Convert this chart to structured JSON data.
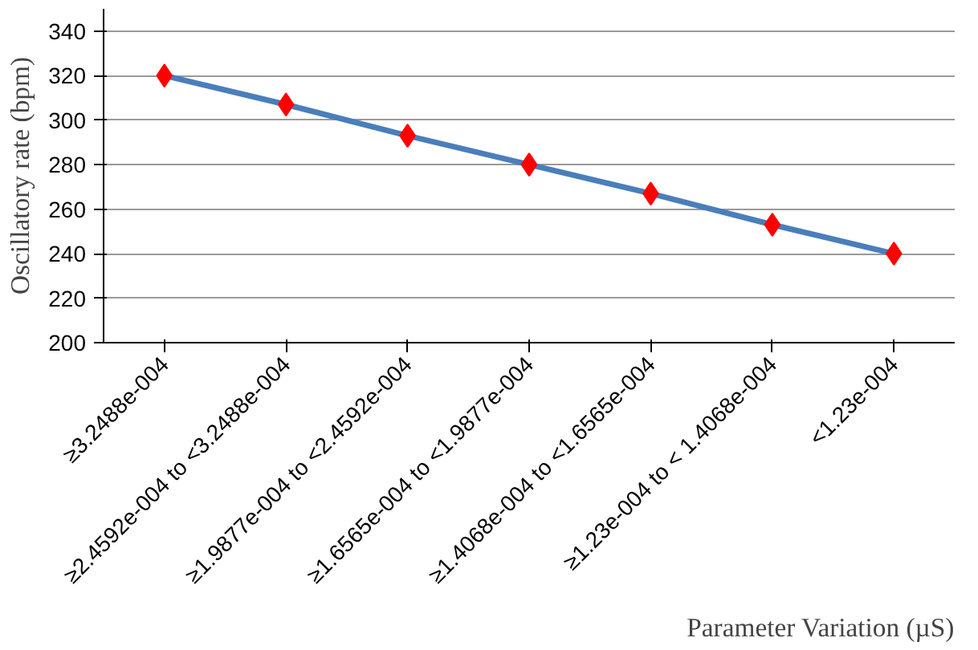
{
  "chart_data": {
    "type": "line",
    "categories": [
      "≥3.2488e-004",
      "≥2.4592e-004 to <3.2488e-004",
      "≥1.9877e-004 to <2.4592e-004",
      "≥1.6565e-004 to <1.9877e-004",
      "≥1.4068e-004 to <1.6565e-004",
      "≥1.23e-004 to < 1.4068e-004",
      "<1.23e-004"
    ],
    "series": [
      {
        "color": "#4a7ebb",
        "colors": [
          "#ff0000",
          "#ff0000",
          "#ff0000",
          "#ff0000",
          "#ff0000",
          "#ff0000",
          "#ff0000"
        ],
        "values": [
          320,
          307,
          293,
          280,
          267,
          253,
          240
        ]
      }
    ],
    "xlabel": "Parameter Variation (µS)",
    "ylabel": "Oscillatory rate (bpm)",
    "ylim": [
      200,
      350
    ],
    "yticks": [
      200,
      220,
      240,
      260,
      280,
      300,
      320,
      340
    ],
    "grid": "y",
    "marker": "diamond",
    "line_style": "solid"
  }
}
